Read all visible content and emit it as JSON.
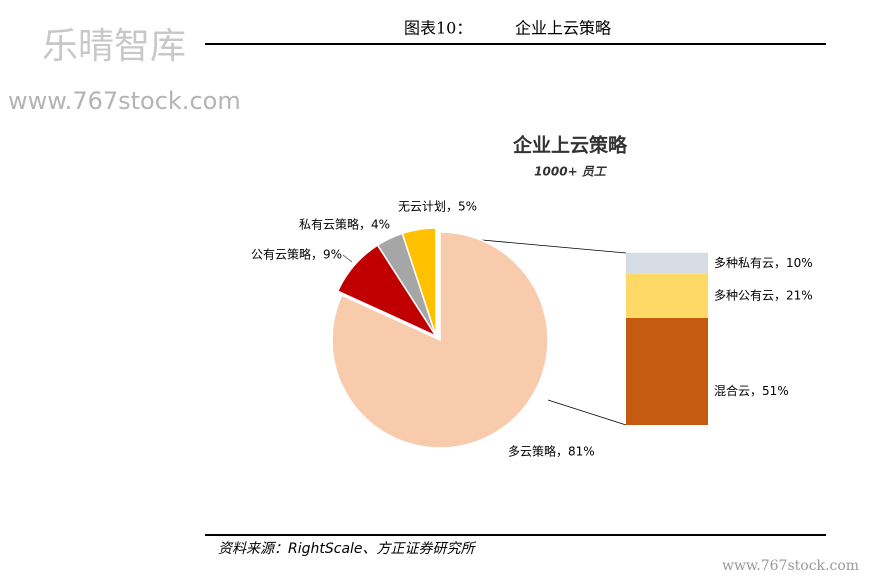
{
  "header": {
    "label": "图表10：",
    "title": "企业上云策略"
  },
  "watermark": {
    "brand": "乐晴智库",
    "url": "www.767stock.com",
    "footer_url": "www.767stock.com"
  },
  "source": "资料来源：RightScale、方正证券研究所",
  "chart_data": [
    {
      "type": "pie",
      "title": "企业上云策略",
      "subtitle": "1000+ 员工",
      "values": [
        81,
        9,
        4,
        5
      ],
      "value_labels": [
        "多云策略，81%",
        "公有云策略，9%",
        "私有云策略，4%",
        "无云计划，5%"
      ],
      "colors": [
        "#f8cbad",
        "#c00000",
        "#a6a6a6",
        "#ffc000"
      ]
    },
    {
      "type": "stacked-bar",
      "values": [
        51,
        21,
        10
      ],
      "value_labels": [
        "混合云，51%",
        "多种公有云，21%",
        "多种私有云，10%"
      ],
      "colors": [
        "#c55a11",
        "#ffd966",
        "#d6dce4"
      ]
    }
  ]
}
